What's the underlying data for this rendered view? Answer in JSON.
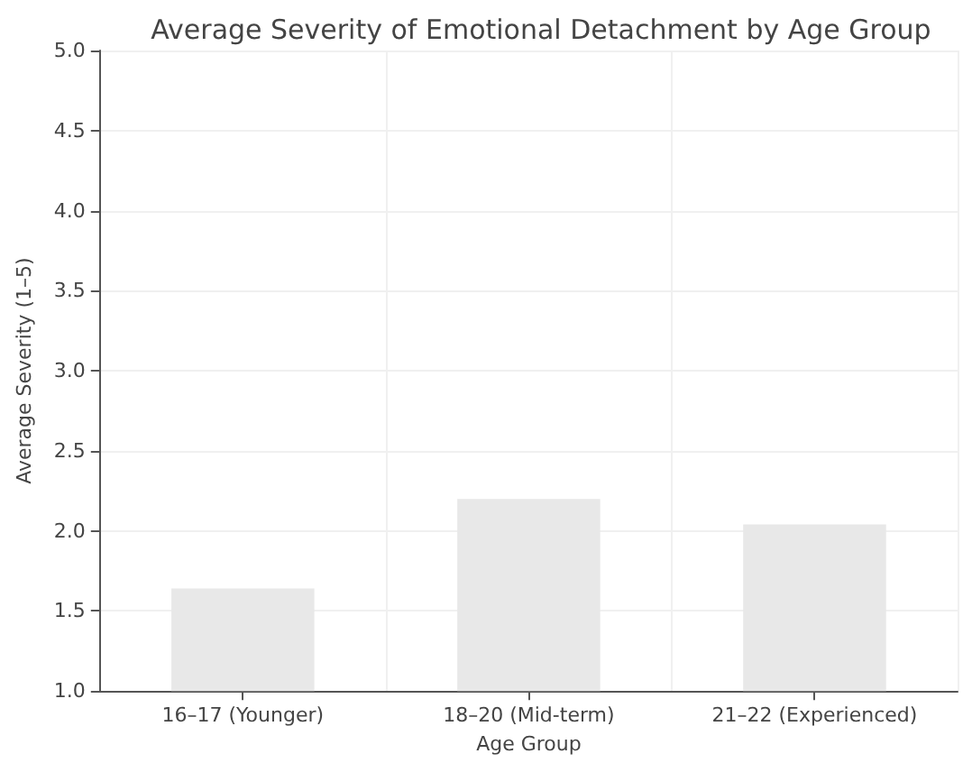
{
  "chart_data": {
    "type": "bar",
    "title": "Average Severity of Emotional Detachment by Age Group",
    "xlabel": "Age Group",
    "ylabel": "Average Severity (1–5)",
    "categories": [
      "16–17 (Younger)",
      "18–20 (Mid-term)",
      "21–22 (Experienced)"
    ],
    "values": [
      1.64,
      2.2,
      2.04
    ],
    "color": "#e8e8e8",
    "ylim": [
      1,
      5
    ],
    "yticks": [
      {
        "value": 1,
        "label": "1.0"
      },
      1.5,
      {
        "value": 2,
        "label": "2.0"
      },
      2.5,
      {
        "value": 3,
        "label": "3.0"
      },
      3.5,
      {
        "value": 4,
        "label": "4.0"
      },
      4.5,
      {
        "value": 5,
        "label": "5.0"
      }
    ],
    "grid": true
  }
}
